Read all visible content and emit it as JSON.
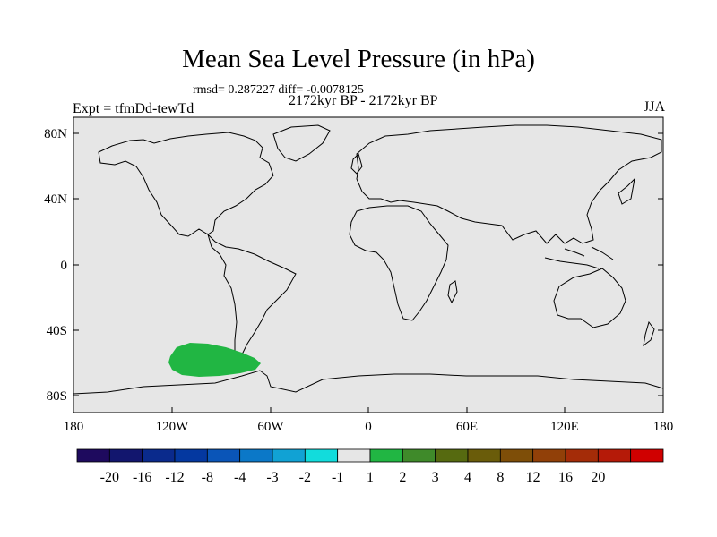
{
  "title": "Mean Sea Level Pressure (in hPa)",
  "stats": "rmsd= 0.287227 diff= -0.0078125",
  "period": "2172kyr BP - 2172kyr BP",
  "experiment": "Expt = tfmDd-tewTd",
  "season": "JJA",
  "colors": {
    "ocean_background": "#e6e6e6",
    "coastline": "#000000",
    "anomaly_fill": "#21b643"
  },
  "map": {
    "lat_labels": [
      "80N",
      "40N",
      "0",
      "40S",
      "80S"
    ],
    "lat_values": [
      80,
      40,
      0,
      -40,
      -80
    ],
    "lon_labels": [
      "180",
      "120W",
      "60W",
      "0",
      "60E",
      "120E",
      "180"
    ],
    "lon_values": [
      -180,
      -120,
      -60,
      0,
      60,
      120,
      180
    ],
    "anomaly_region": {
      "name": "Southeast Pacific",
      "lon_range": [
        -125,
        -68
      ],
      "lat_range": [
        -68,
        -50
      ],
      "class": "1 to 2"
    }
  },
  "colorbar": {
    "colors": [
      "#1e0a5e",
      "#12166e",
      "#0a2a8c",
      "#0438a0",
      "#0a55b8",
      "#0b78c8",
      "#11a2d4",
      "#12dcdc",
      "#e6e6e6",
      "#21b643",
      "#3f8a2a",
      "#566a10",
      "#6a5c0a",
      "#7e4e08",
      "#914008",
      "#a42c08",
      "#b51a08",
      "#d00000"
    ],
    "labels": [
      "-20",
      "-16",
      "-12",
      "-8",
      "-4",
      "-3",
      "-2",
      "-1",
      "1",
      "2",
      "3",
      "4",
      "8",
      "12",
      "16",
      "20"
    ]
  }
}
